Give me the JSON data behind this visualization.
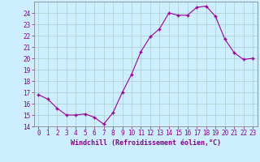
{
  "x": [
    0,
    1,
    2,
    3,
    4,
    5,
    6,
    7,
    8,
    9,
    10,
    11,
    12,
    13,
    14,
    15,
    16,
    17,
    18,
    19,
    20,
    21,
    22,
    23
  ],
  "y": [
    16.8,
    16.4,
    15.6,
    15.0,
    15.0,
    15.1,
    14.8,
    14.2,
    15.2,
    17.0,
    18.6,
    20.6,
    21.9,
    22.6,
    24.0,
    23.8,
    23.8,
    24.5,
    24.6,
    23.7,
    21.7,
    20.5,
    19.9,
    20.0
  ],
  "line_color": "#990099",
  "marker": "+",
  "marker_size": 3,
  "bg_color": "#cceeff",
  "grid_color": "#aacccc",
  "xlabel": "Windchill (Refroidissement éolien,°C)",
  "xlim": [
    -0.5,
    23.5
  ],
  "ylim": [
    14,
    25
  ],
  "yticks": [
    14,
    15,
    16,
    17,
    18,
    19,
    20,
    21,
    22,
    23,
    24
  ],
  "xticks": [
    0,
    1,
    2,
    3,
    4,
    5,
    6,
    7,
    8,
    9,
    10,
    11,
    12,
    13,
    14,
    15,
    16,
    17,
    18,
    19,
    20,
    21,
    22,
    23
  ],
  "label_color": "#880088",
  "spine_color": "#888888",
  "tick_fontsize": 5.5,
  "xlabel_fontsize": 6.0
}
